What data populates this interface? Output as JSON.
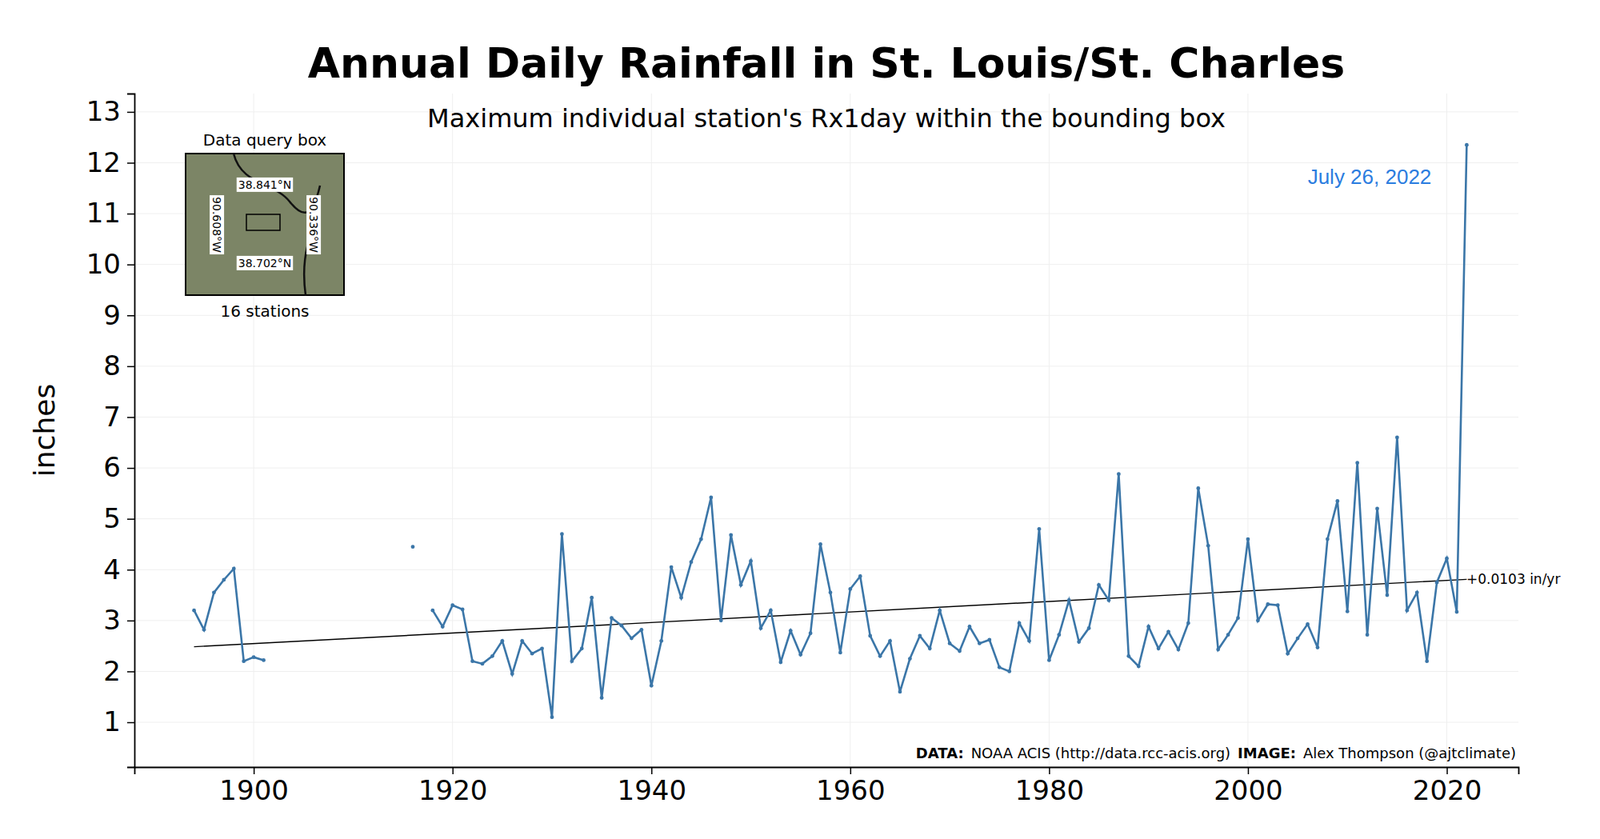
{
  "chart_data": {
    "type": "line",
    "title": "Annual Daily Rainfall in St. Louis/St. Charles",
    "subtitle": "Maximum individual station's Rx1day within the bounding box",
    "y_label": "inches",
    "color": "#3b76a8",
    "marker": "o",
    "line_style": "solid",
    "grid": true,
    "xlim": [
      1888,
      2027.2
    ],
    "ylim": [
      0.12,
      13.36
    ],
    "xticks": [
      1900,
      1920,
      1940,
      1960,
      1980,
      2000,
      2020
    ],
    "yticks": [
      1,
      2,
      3,
      4,
      5,
      6,
      7,
      8,
      9,
      10,
      11,
      12,
      13
    ],
    "x": [
      1894,
      1895,
      1896,
      1897,
      1898,
      1899,
      1900,
      1901,
      1902,
      1903,
      1904,
      1905,
      1906,
      1907,
      1908,
      1909,
      1910,
      1911,
      1912,
      1913,
      1914,
      1915,
      1916,
      1917,
      1918,
      1919,
      1920,
      1921,
      1922,
      1923,
      1924,
      1925,
      1926,
      1927,
      1928,
      1929,
      1930,
      1931,
      1932,
      1933,
      1934,
      1935,
      1936,
      1937,
      1938,
      1939,
      1940,
      1941,
      1942,
      1943,
      1944,
      1945,
      1946,
      1947,
      1948,
      1949,
      1950,
      1951,
      1952,
      1953,
      1954,
      1955,
      1956,
      1957,
      1958,
      1959,
      1960,
      1961,
      1962,
      1963,
      1964,
      1965,
      1966,
      1967,
      1968,
      1969,
      1970,
      1971,
      1972,
      1973,
      1974,
      1975,
      1976,
      1977,
      1978,
      1979,
      1980,
      1981,
      1982,
      1983,
      1984,
      1985,
      1986,
      1987,
      1988,
      1989,
      1990,
      1991,
      1992,
      1993,
      1994,
      1995,
      1996,
      1997,
      1998,
      1999,
      2000,
      2001,
      2002,
      2003,
      2004,
      2005,
      2006,
      2007,
      2008,
      2009,
      2010,
      2011,
      2012,
      2013,
      2014,
      2015,
      2016,
      2017,
      2018,
      2019,
      2020,
      2021,
      2022
    ],
    "values": [
      3.2,
      2.82,
      3.55,
      3.8,
      4.02,
      2.2,
      2.28,
      2.22,
      null,
      null,
      null,
      null,
      null,
      null,
      null,
      null,
      null,
      null,
      null,
      null,
      null,
      null,
      4.45,
      null,
      3.2,
      2.88,
      3.3,
      3.22,
      2.2,
      2.15,
      2.3,
      2.6,
      1.95,
      2.6,
      2.35,
      2.45,
      1.1,
      4.7,
      2.2,
      2.45,
      3.45,
      1.48,
      3.05,
      2.9,
      2.65,
      2.82,
      1.72,
      2.6,
      4.05,
      3.45,
      4.15,
      4.6,
      5.42,
      3.0,
      4.68,
      3.7,
      4.17,
      2.85,
      3.2,
      2.18,
      2.8,
      2.33,
      2.75,
      4.5,
      3.55,
      2.37,
      3.62,
      3.87,
      2.7,
      2.3,
      2.6,
      1.6,
      2.25,
      2.7,
      2.45,
      3.2,
      2.55,
      2.4,
      2.88,
      2.55,
      2.62,
      2.08,
      2.0,
      2.95,
      2.6,
      4.8,
      2.22,
      2.72,
      3.4,
      2.58,
      2.85,
      3.7,
      3.4,
      5.88,
      2.3,
      2.1,
      2.88,
      2.45,
      2.78,
      2.43,
      2.95,
      5.6,
      4.47,
      2.43,
      2.72,
      3.05,
      4.6,
      3.0,
      3.32,
      3.3,
      2.35,
      2.65,
      2.93,
      2.47,
      4.6,
      5.35,
      3.18,
      6.1,
      2.72,
      5.2,
      3.5,
      6.6,
      3.2,
      3.55,
      2.2,
      3.75,
      4.22,
      3.17,
      12.35
    ],
    "trend": {
      "x": [
        1894,
        2022
      ],
      "values": [
        2.485,
        3.81
      ],
      "label": "+0.0103 in/yr",
      "color": "#000000"
    },
    "annotations": [
      {
        "text": "July 26, 2022",
        "color": "#2b7de0"
      }
    ],
    "inset": {
      "title": "Data query box",
      "north": "38.841°N",
      "south": "38.702°N",
      "west": "90.608°W",
      "east": "90.336°W",
      "caption": "16 stations"
    },
    "credits": [
      {
        "label": "DATA:",
        "text": "NOAA ACIS (http://data.rcc-acis.org)"
      },
      {
        "label": "IMAGE:",
        "text": "Alex Thompson (@ajtclimate)"
      }
    ]
  }
}
